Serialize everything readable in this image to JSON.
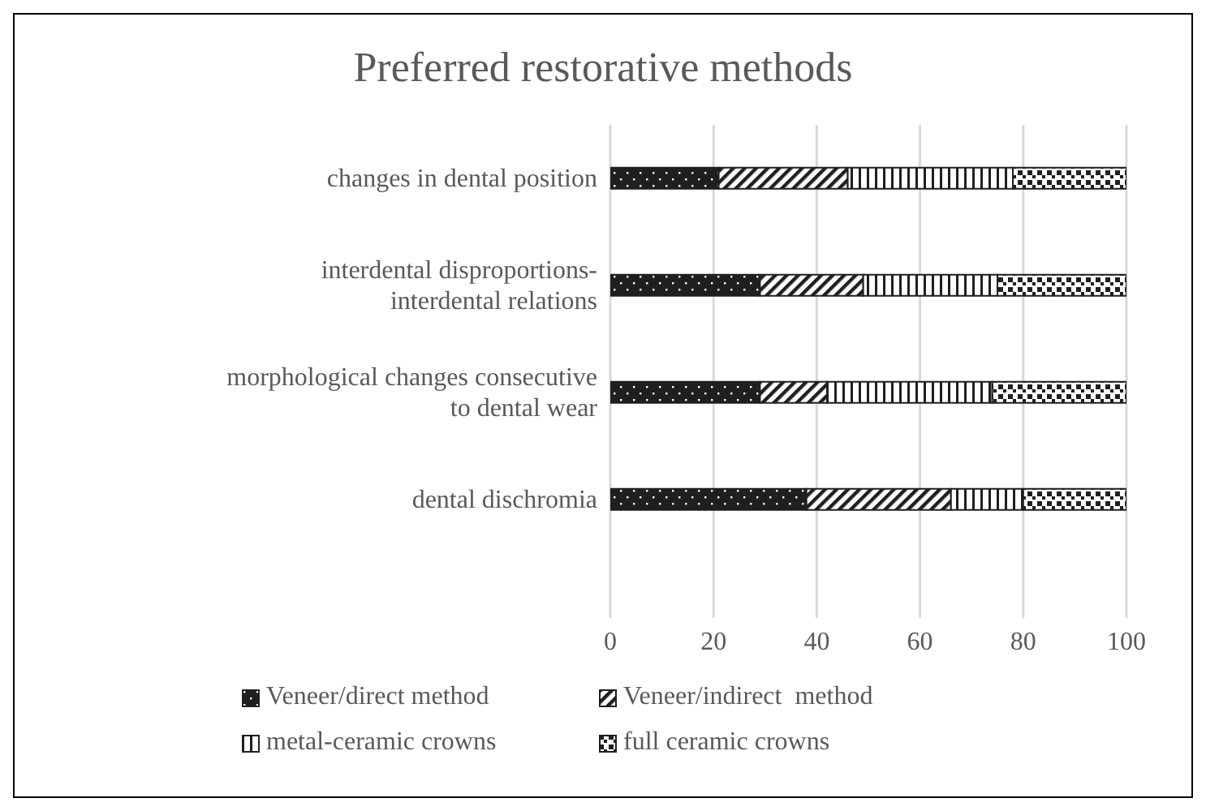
{
  "chart_data": {
    "type": "bar",
    "orientation": "horizontal",
    "stacked": true,
    "title": "Preferred restorative methods",
    "categories": [
      "changes in dental position",
      "interdental disproportions-interdental relations",
      "morphological changes consecutive to dental wear",
      "dental dischromia"
    ],
    "series": [
      {
        "name": "Veneer/direct method",
        "color": "#1f1f1f",
        "values": [
          21,
          29,
          29,
          38
        ]
      },
      {
        "name": "Veneer/indirect  method",
        "color": "#1f1f1f",
        "values": [
          25,
          20,
          13,
          28
        ]
      },
      {
        "name": "metal-ceramic crowns",
        "color": "#1f1f1f",
        "values": [
          32,
          26,
          32,
          14
        ]
      },
      {
        "name": "full ceramic crowns",
        "color": "#1f1f1f",
        "values": [
          22,
          25,
          26,
          20
        ]
      }
    ],
    "xlim": [
      0,
      100
    ],
    "xticks": [
      0,
      20,
      40,
      60,
      80,
      100
    ],
    "grid": "x",
    "legend": "bottom"
  }
}
